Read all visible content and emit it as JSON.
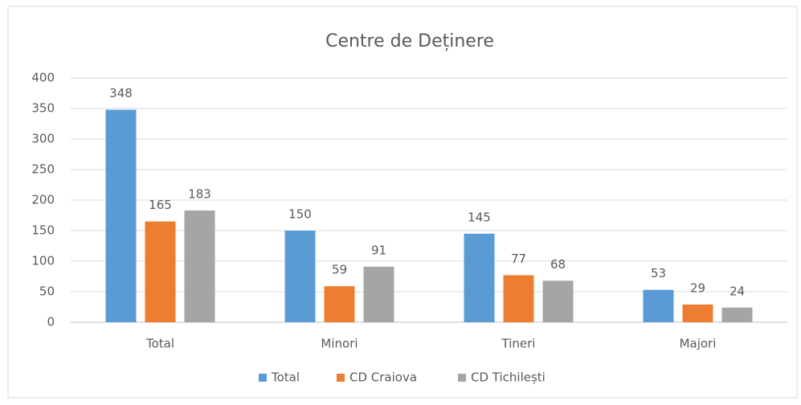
{
  "chart_data": {
    "type": "bar",
    "title": "Centre de Deținere",
    "categories": [
      "Total",
      "Minori",
      "Tineri",
      "Majori"
    ],
    "series": [
      {
        "name": "Total",
        "color": "#5b9bd5",
        "values": [
          348,
          150,
          145,
          53
        ]
      },
      {
        "name": "CD Craiova",
        "color": "#ed7d31",
        "values": [
          165,
          59,
          77,
          29
        ]
      },
      {
        "name": "CD Tichilești",
        "color": "#a5a5a5",
        "values": [
          183,
          91,
          68,
          24
        ]
      }
    ],
    "ylim": [
      0,
      400
    ],
    "yticks": [
      0,
      50,
      100,
      150,
      200,
      250,
      300,
      350,
      400
    ],
    "grid": true,
    "legend": "bottom"
  }
}
